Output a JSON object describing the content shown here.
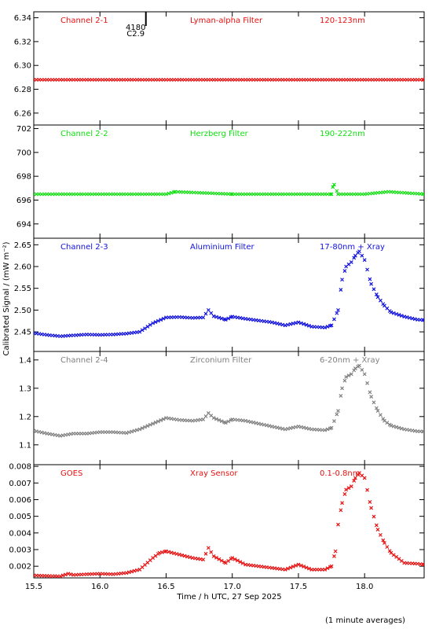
{
  "figure": {
    "ylabel": "Calibrated Signal / (mW m⁻²)",
    "xlabel": "Time / h UTC, 27 Sep 2025",
    "footnote": "(1 minute averages)",
    "flare_marker": {
      "label_top": "4180",
      "label_bottom": "C2.9",
      "x": 16.27
    }
  },
  "chart_data": [
    {
      "type": "scatter",
      "channel": "Channel 2-1",
      "filter": "Lyman-alpha Filter",
      "band": "120-123nm",
      "color": "#e81010",
      "xlim": [
        15.5,
        18.45
      ],
      "ylim": [
        6.25,
        6.345
      ],
      "yticks": [
        6.26,
        6.28,
        6.3,
        6.32,
        6.34
      ],
      "ytick_labels": [
        "6.26",
        "6.28",
        "6.30",
        "6.32",
        "6.34"
      ],
      "series": [
        {
          "points": [
            [
              15.5,
              6.288
            ],
            [
              16.0,
              6.288
            ],
            [
              16.5,
              6.288
            ],
            [
              17.0,
              6.288
            ],
            [
              17.5,
              6.288
            ],
            [
              18.0,
              6.288
            ],
            [
              18.45,
              6.288
            ]
          ]
        }
      ]
    },
    {
      "type": "scatter",
      "channel": "Channel 2-2",
      "filter": "Herzberg Filter",
      "band": "190-222nm",
      "color": "#10e010",
      "xlim": [
        15.5,
        18.45
      ],
      "ylim": [
        692.8,
        702.3
      ],
      "yticks": [
        694,
        696,
        698,
        700,
        702
      ],
      "ytick_labels": [
        "694",
        "696",
        "698",
        "700",
        "702"
      ],
      "series": [
        {
          "points": [
            [
              15.5,
              696.5
            ],
            [
              16.0,
              696.5
            ],
            [
              16.5,
              696.5
            ],
            [
              16.57,
              696.7
            ],
            [
              17.0,
              696.5
            ],
            [
              17.5,
              696.5
            ],
            [
              17.75,
              696.5
            ],
            [
              17.76,
              697.1
            ],
            [
              17.77,
              697.3
            ],
            [
              17.8,
              696.5
            ],
            [
              18.0,
              696.5
            ],
            [
              18.18,
              696.7
            ],
            [
              18.45,
              696.5
            ]
          ]
        }
      ]
    },
    {
      "type": "scatter",
      "channel": "Channel 2-3",
      "filter": "Aluminium Filter",
      "band": "17-80nm + Xray",
      "color": "#1010e0",
      "xlim": [
        15.5,
        18.45
      ],
      "ylim": [
        2.405,
        2.665
      ],
      "yticks": [
        2.45,
        2.5,
        2.55,
        2.6,
        2.65
      ],
      "ytick_labels": [
        "2.45",
        "2.50",
        "2.55",
        "2.60",
        "2.65"
      ],
      "series": [
        {
          "points": [
            [
              15.5,
              2.447
            ],
            [
              15.6,
              2.443
            ],
            [
              15.7,
              2.44
            ],
            [
              15.8,
              2.442
            ],
            [
              15.9,
              2.444
            ],
            [
              16.0,
              2.443
            ],
            [
              16.1,
              2.444
            ],
            [
              16.2,
              2.446
            ],
            [
              16.3,
              2.45
            ],
            [
              16.4,
              2.47
            ],
            [
              16.5,
              2.483
            ],
            [
              16.6,
              2.484
            ],
            [
              16.7,
              2.482
            ],
            [
              16.78,
              2.483
            ],
            [
              16.82,
              2.5
            ],
            [
              16.86,
              2.486
            ],
            [
              16.95,
              2.478
            ],
            [
              17.0,
              2.485
            ],
            [
              17.1,
              2.48
            ],
            [
              17.2,
              2.476
            ],
            [
              17.3,
              2.472
            ],
            [
              17.4,
              2.465
            ],
            [
              17.5,
              2.472
            ],
            [
              17.6,
              2.462
            ],
            [
              17.7,
              2.46
            ],
            [
              17.75,
              2.465
            ],
            [
              17.8,
              2.5
            ],
            [
              17.83,
              2.57
            ],
            [
              17.86,
              2.6
            ],
            [
              17.9,
              2.61
            ],
            [
              17.93,
              2.625
            ],
            [
              17.96,
              2.635
            ],
            [
              18.0,
              2.615
            ],
            [
              18.05,
              2.56
            ],
            [
              18.1,
              2.53
            ],
            [
              18.15,
              2.51
            ],
            [
              18.2,
              2.495
            ],
            [
              18.3,
              2.485
            ],
            [
              18.4,
              2.478
            ],
            [
              18.45,
              2.477
            ]
          ]
        }
      ]
    },
    {
      "type": "scatter",
      "channel": "Channel 2-4",
      "filter": "Zirconium Filter",
      "band": "6-20nm + Xray",
      "color": "#808080",
      "xlim": [
        15.5,
        18.45
      ],
      "ylim": [
        1.03,
        1.43
      ],
      "yticks": [
        1.1,
        1.2,
        1.3,
        1.4
      ],
      "ytick_labels": [
        "1.1",
        "1.2",
        "1.3",
        "1.4"
      ],
      "series": [
        {
          "points": [
            [
              15.5,
              1.15
            ],
            [
              15.6,
              1.14
            ],
            [
              15.7,
              1.132
            ],
            [
              15.8,
              1.14
            ],
            [
              15.9,
              1.14
            ],
            [
              16.0,
              1.145
            ],
            [
              16.1,
              1.145
            ],
            [
              16.2,
              1.142
            ],
            [
              16.3,
              1.155
            ],
            [
              16.4,
              1.175
            ],
            [
              16.5,
              1.195
            ],
            [
              16.6,
              1.188
            ],
            [
              16.7,
              1.185
            ],
            [
              16.78,
              1.19
            ],
            [
              16.82,
              1.212
            ],
            [
              16.86,
              1.195
            ],
            [
              16.95,
              1.178
            ],
            [
              17.0,
              1.19
            ],
            [
              17.1,
              1.185
            ],
            [
              17.2,
              1.175
            ],
            [
              17.3,
              1.165
            ],
            [
              17.4,
              1.155
            ],
            [
              17.5,
              1.165
            ],
            [
              17.6,
              1.155
            ],
            [
              17.7,
              1.152
            ],
            [
              17.75,
              1.16
            ],
            [
              17.8,
              1.22
            ],
            [
              17.83,
              1.3
            ],
            [
              17.86,
              1.34
            ],
            [
              17.9,
              1.35
            ],
            [
              17.93,
              1.37
            ],
            [
              17.96,
              1.38
            ],
            [
              18.0,
              1.35
            ],
            [
              18.05,
              1.27
            ],
            [
              18.1,
              1.22
            ],
            [
              18.15,
              1.185
            ],
            [
              18.2,
              1.168
            ],
            [
              18.3,
              1.155
            ],
            [
              18.4,
              1.148
            ],
            [
              18.45,
              1.147
            ]
          ]
        }
      ]
    },
    {
      "type": "scatter",
      "channel": "GOES",
      "filter": "Xray Sensor",
      "band": "0.1-0.8nm",
      "color": "#e81010",
      "xlim": [
        15.5,
        18.45
      ],
      "ylim": [
        0.0013,
        0.0081
      ],
      "yticks": [
        0.002,
        0.003,
        0.004,
        0.005,
        0.006,
        0.007,
        0.008
      ],
      "ytick_labels": [
        "0.002",
        "0.003",
        "0.004",
        "0.005",
        "0.006",
        "0.007",
        "0.008"
      ],
      "series": [
        {
          "points": [
            [
              15.5,
              0.00145
            ],
            [
              15.6,
              0.00142
            ],
            [
              15.7,
              0.0014
            ],
            [
              15.76,
              0.00155
            ],
            [
              15.8,
              0.00148
            ],
            [
              15.9,
              0.00152
            ],
            [
              16.0,
              0.00155
            ],
            [
              16.1,
              0.00152
            ],
            [
              16.2,
              0.0016
            ],
            [
              16.3,
              0.0018
            ],
            [
              16.4,
              0.0025
            ],
            [
              16.45,
              0.0028
            ],
            [
              16.5,
              0.0029
            ],
            [
              16.6,
              0.0027
            ],
            [
              16.7,
              0.0025
            ],
            [
              16.78,
              0.0024
            ],
            [
              16.82,
              0.0031
            ],
            [
              16.86,
              0.0026
            ],
            [
              16.95,
              0.0022
            ],
            [
              17.0,
              0.0025
            ],
            [
              17.1,
              0.0021
            ],
            [
              17.2,
              0.002
            ],
            [
              17.3,
              0.0019
            ],
            [
              17.4,
              0.0018
            ],
            [
              17.5,
              0.0021
            ],
            [
              17.6,
              0.0018
            ],
            [
              17.7,
              0.0018
            ],
            [
              17.75,
              0.002
            ],
            [
              17.78,
              0.0029
            ],
            [
              17.8,
              0.0045
            ],
            [
              17.83,
              0.0058
            ],
            [
              17.86,
              0.0066
            ],
            [
              17.9,
              0.0068
            ],
            [
              17.93,
              0.0073
            ],
            [
              17.96,
              0.0076
            ],
            [
              18.0,
              0.0073
            ],
            [
              18.05,
              0.0055
            ],
            [
              18.1,
              0.0042
            ],
            [
              18.15,
              0.0034
            ],
            [
              18.2,
              0.0028
            ],
            [
              18.3,
              0.0022
            ],
            [
              18.4,
              0.00215
            ],
            [
              18.45,
              0.0021
            ]
          ]
        }
      ]
    }
  ],
  "xticks": [
    15.5,
    16.0,
    16.5,
    17.0,
    17.5,
    18.0
  ],
  "xtick_labels": [
    "15.5",
    "16.0",
    "16.5",
    "17.0",
    "17.5",
    "18.0"
  ]
}
